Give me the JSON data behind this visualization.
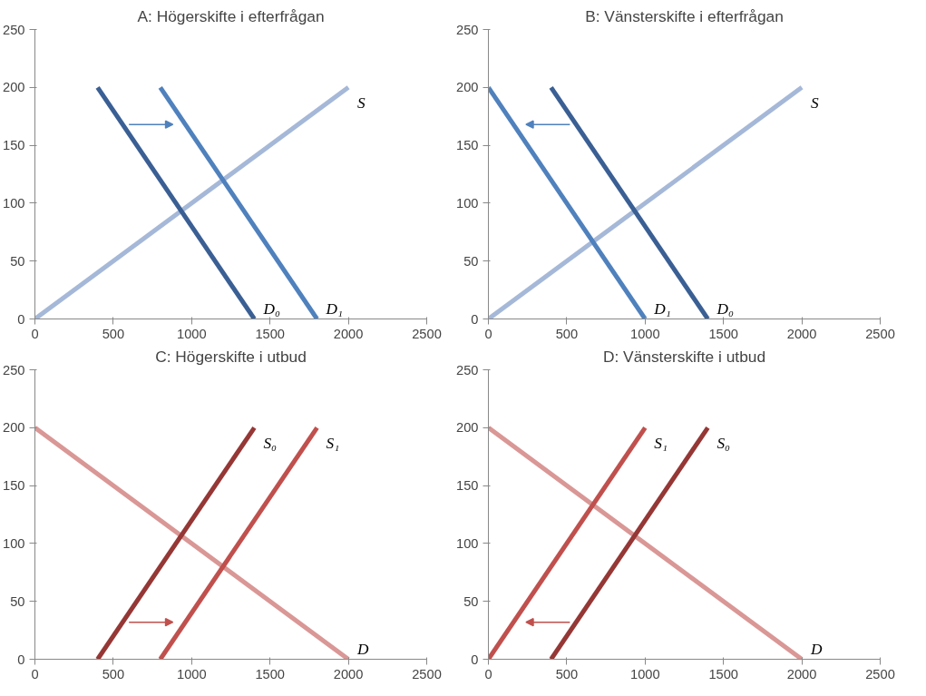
{
  "chart_data": [
    {
      "type": "line",
      "title": "A: Högerskifte i efterfrågan",
      "xlim": [
        0,
        2500
      ],
      "ylim": [
        0,
        250
      ],
      "xticks": [
        0,
        500,
        1000,
        1500,
        2000,
        2500
      ],
      "yticks": [
        0,
        50,
        100,
        150,
        200,
        250
      ],
      "grid": false,
      "series": [
        {
          "name": "S",
          "color": "#a5b8d8",
          "x": [
            0,
            2000
          ],
          "values": [
            0,
            200
          ]
        },
        {
          "name": "D₀",
          "color": "#3a5f94",
          "x": [
            400,
            1400
          ],
          "values": [
            200,
            0
          ]
        },
        {
          "name": "D₁",
          "color": "#4f81bd",
          "x": [
            800,
            1800
          ],
          "values": [
            200,
            0
          ]
        }
      ]
    },
    {
      "type": "line",
      "title": "B: Vänsterskifte i efterfrågan",
      "xlim": [
        0,
        2500
      ],
      "ylim": [
        0,
        250
      ],
      "xticks": [
        0,
        500,
        1000,
        1500,
        2000,
        2500
      ],
      "yticks": [
        0,
        50,
        100,
        150,
        200,
        250
      ],
      "grid": false,
      "series": [
        {
          "name": "S",
          "color": "#a5b8d8",
          "x": [
            0,
            2000
          ],
          "values": [
            0,
            200
          ]
        },
        {
          "name": "D₀",
          "color": "#3a5f94",
          "x": [
            400,
            1400
          ],
          "values": [
            200,
            0
          ]
        },
        {
          "name": "D₁",
          "color": "#4f81bd",
          "x": [
            0,
            1000
          ],
          "values": [
            200,
            0
          ]
        }
      ]
    },
    {
      "type": "line",
      "title": "C: Högerskifte i utbud",
      "xlim": [
        0,
        2500
      ],
      "ylim": [
        0,
        250
      ],
      "xticks": [
        0,
        500,
        1000,
        1500,
        2000,
        2500
      ],
      "yticks": [
        0,
        50,
        100,
        150,
        200,
        250
      ],
      "grid": false,
      "series": [
        {
          "name": "D",
          "color": "#d99795",
          "x": [
            0,
            2000
          ],
          "values": [
            200,
            0
          ]
        },
        {
          "name": "S₀",
          "color": "#953735",
          "x": [
            400,
            1400
          ],
          "values": [
            0,
            200
          ]
        },
        {
          "name": "S₁",
          "color": "#c0504d",
          "x": [
            800,
            1800
          ],
          "values": [
            0,
            200
          ]
        }
      ]
    },
    {
      "type": "line",
      "title": "D: Vänsterskifte i utbud",
      "xlim": [
        0,
        2500
      ],
      "ylim": [
        0,
        250
      ],
      "xticks": [
        0,
        500,
        1000,
        1500,
        2000,
        2500
      ],
      "yticks": [
        0,
        50,
        100,
        150,
        200,
        250
      ],
      "grid": false,
      "series": [
        {
          "name": "D",
          "color": "#d99795",
          "x": [
            0,
            2000
          ],
          "values": [
            200,
            0
          ]
        },
        {
          "name": "S₀",
          "color": "#953735",
          "x": [
            400,
            1400
          ],
          "values": [
            0,
            200
          ]
        },
        {
          "name": "S₁",
          "color": "#c0504d",
          "x": [
            0,
            1000
          ],
          "values": [
            0,
            200
          ]
        }
      ]
    }
  ]
}
